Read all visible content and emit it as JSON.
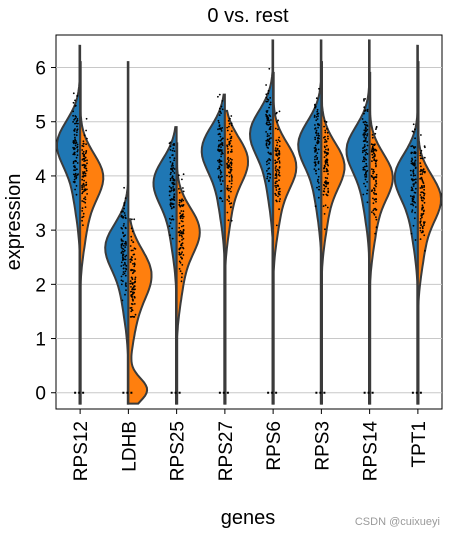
{
  "chart_data": {
    "type": "violin",
    "title": "0 vs. rest",
    "xlabel": "genes",
    "ylabel": "expression",
    "ylim": [
      -0.3,
      6.6
    ],
    "yticks": [
      0,
      1,
      2,
      3,
      4,
      5,
      6
    ],
    "grid": "horizontal",
    "split": true,
    "colors": {
      "group": "#1f77b4",
      "rest": "#ff7f0e"
    },
    "categories": [
      "RPS12",
      "LDHB",
      "RPS25",
      "RPS27",
      "RPS6",
      "RPS3",
      "RPS14",
      "TPT1"
    ],
    "series": [
      {
        "values": [
          4.6,
          2.7,
          3.9,
          4.5,
          4.8,
          4.6,
          4.5,
          4.0
        ],
        "max": [
          6.4,
          6.1,
          4.9,
          5.5,
          6.5,
          6.5,
          6.5,
          6.4
        ]
      },
      {
        "values": [
          4.0,
          2.2,
          3.0,
          4.3,
          4.2,
          4.2,
          4.0,
          3.6
        ],
        "max": [
          6.1,
          3.2,
          4.6,
          5.2,
          5.9,
          6.1,
          5.9,
          6.1
        ]
      }
    ]
  },
  "watermark": "CSDN @cuixueyi"
}
